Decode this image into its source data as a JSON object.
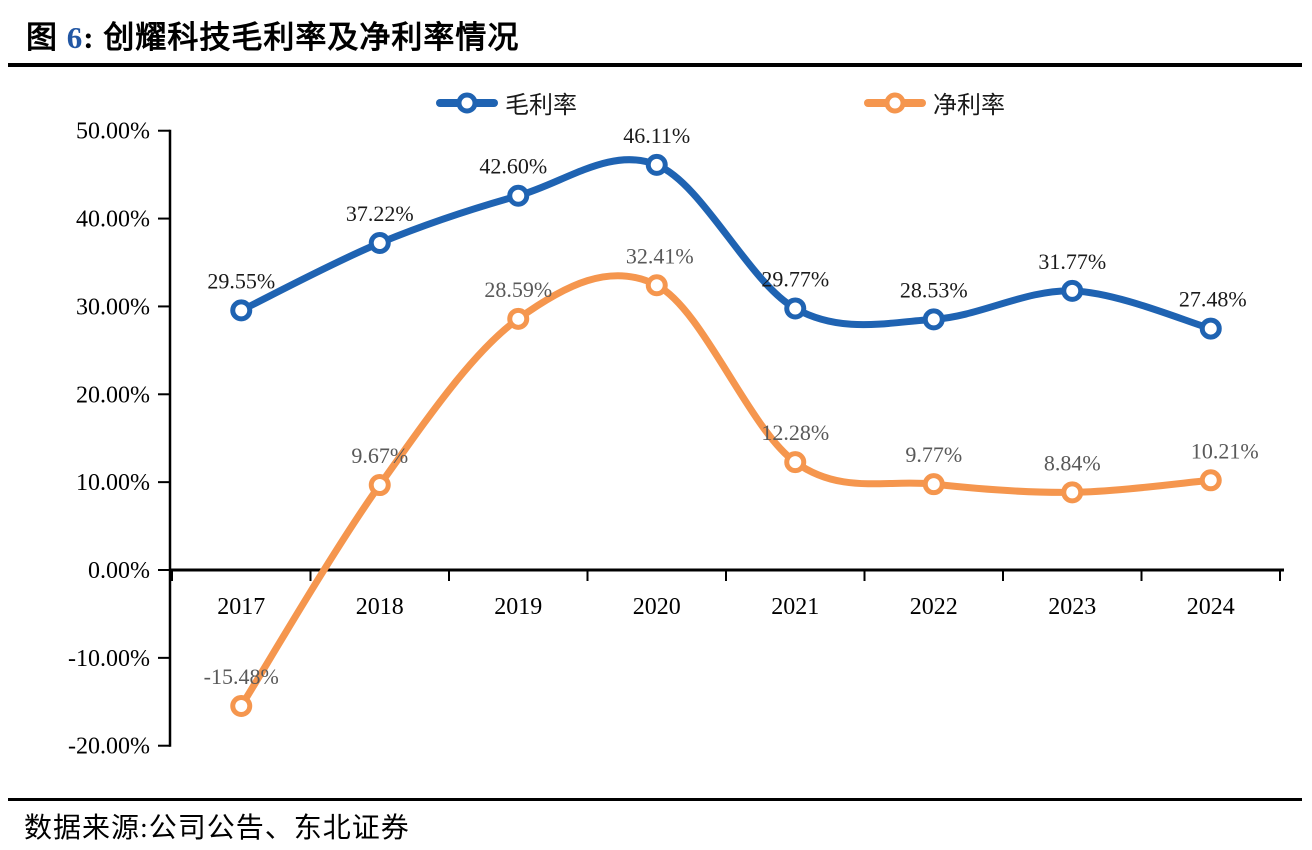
{
  "header": {
    "figure_label_prefix": "图 ",
    "figure_number": "6",
    "figure_title_rest": ": 创耀科技毛利率及净利率情况",
    "accent_color": "#2257A4"
  },
  "footer": {
    "source_text": "数据来源:公司公告、东北证券"
  },
  "chart_data": {
    "type": "line",
    "title": "创耀科技毛利率及净利率情况",
    "xlabel": "",
    "ylabel": "",
    "categories": [
      "2017",
      "2018",
      "2019",
      "2020",
      "2021",
      "2022",
      "2023",
      "2024"
    ],
    "ylim": [
      -20,
      50
    ],
    "grid": false,
    "smooth": true,
    "legend_position": "top",
    "marker_style": "hollow-circle",
    "axis_color": "#000000",
    "y_axis": {
      "ticks": [
        {
          "label": "50.00%",
          "value": 50
        },
        {
          "label": "40.00%",
          "value": 40
        },
        {
          "label": "30.00%",
          "value": 30
        },
        {
          "label": "20.00%",
          "value": 20
        },
        {
          "label": "10.00%",
          "value": 10
        },
        {
          "label": "0.00%",
          "value": 0
        },
        {
          "label": "-10.00%",
          "value": -10
        },
        {
          "label": "-20.00%",
          "value": -20
        }
      ]
    },
    "series": [
      {
        "name": "毛利率",
        "color": "#1F63B2",
        "label_color": "#1a1a1a",
        "values": [
          29.55,
          37.22,
          42.6,
          46.11,
          29.77,
          28.53,
          31.77,
          27.48
        ],
        "labels": [
          "29.55%",
          "37.22%",
          "42.60%",
          "46.11%",
          "29.77%",
          "28.53%",
          "31.77%",
          "27.48%"
        ],
        "label_dx": [
          0,
          0,
          -5,
          0,
          0,
          0,
          0,
          2
        ]
      },
      {
        "name": "净利率",
        "color": "#F5964E",
        "label_color": "#595959",
        "values": [
          -15.48,
          9.67,
          28.59,
          32.41,
          12.28,
          9.77,
          8.84,
          10.21
        ],
        "labels": [
          "-15.48%",
          "9.67%",
          "28.59%",
          "32.41%",
          "12.28%",
          "9.77%",
          "8.84%",
          "10.21%"
        ],
        "label_dx": [
          0,
          0,
          0,
          3,
          0,
          0,
          0,
          14
        ]
      }
    ]
  }
}
